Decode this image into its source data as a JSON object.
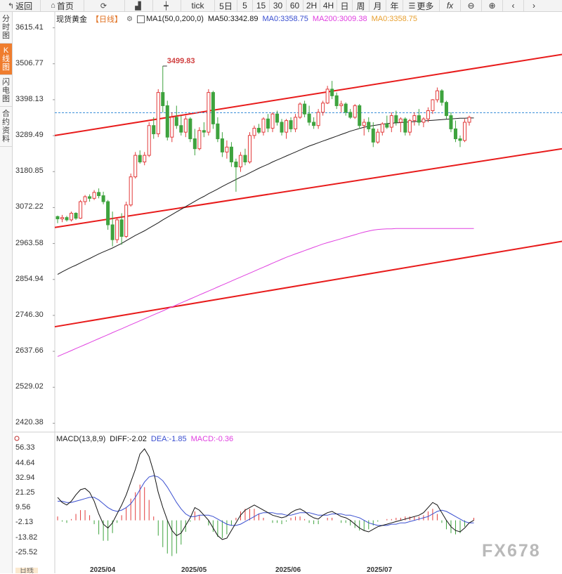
{
  "toolbar": {
    "back_label": "返回",
    "home_label": "首页",
    "tick_label": "tick",
    "periods": [
      "5日",
      "5",
      "15",
      "30",
      "60",
      "2H",
      "4H",
      "日",
      "周",
      "月",
      "年"
    ],
    "more_label": "更多",
    "fx_label": "fx"
  },
  "sidebar": {
    "tabs": [
      {
        "label": "分时图",
        "active": false
      },
      {
        "label": "K线图",
        "active": true
      },
      {
        "label": "闪电图",
        "active": false
      },
      {
        "label": "合约资料",
        "active": false
      }
    ]
  },
  "legend": {
    "symbol": "现货黄金",
    "period": "【日线】",
    "ma_setting": "MA1(50,0,200,0)",
    "ma50": "MA50:3342.89",
    "ma0a": "MA0:3358.75",
    "ma200": "MA200:3009.38",
    "ma0b": "MA0:3358.75"
  },
  "macd_legend": {
    "setting": "MACD(13,8,9)",
    "diff": "DIFF:-2.02",
    "dea": "DEA:-1.85",
    "macd": "MACD:-0.36"
  },
  "watermark": "FX678",
  "bottom_tab": "日线",
  "colors": {
    "up": "#e23b3b",
    "down": "#3ea33e",
    "ma50": "#1a1a1a",
    "ma200": "#e040e0",
    "channel": "#e81b1b",
    "last_price": "#3b8fd9",
    "dea": "#3a4fd0",
    "diff": "#111111"
  },
  "chart_data": {
    "type": "candlestick",
    "y_ticks": [
      "3615.41",
      "3506.77",
      "3398.13",
      "3289.49",
      "3180.85",
      "3072.22",
      "2963.58",
      "2854.94",
      "2746.30",
      "2637.66",
      "2529.02",
      "2420.38"
    ],
    "ylim": [
      2400,
      3640
    ],
    "x_labels": [
      "2025/04",
      "2025/05",
      "2025/06",
      "2025/07"
    ],
    "annotation": {
      "text": "3499.83",
      "value": 3499.83
    },
    "last_price": 3358.75,
    "candles": [
      [
        3045,
        3048,
        3025,
        3038
      ],
      [
        3038,
        3050,
        3028,
        3042
      ],
      [
        3042,
        3047,
        3030,
        3035
      ],
      [
        3035,
        3060,
        3030,
        3055
      ],
      [
        3055,
        3058,
        3035,
        3040
      ],
      [
        3040,
        3095,
        3038,
        3090
      ],
      [
        3090,
        3110,
        3080,
        3105
      ],
      [
        3105,
        3112,
        3090,
        3100
      ],
      [
        3100,
        3125,
        3095,
        3118
      ],
      [
        3118,
        3130,
        3100,
        3108
      ],
      [
        3108,
        3120,
        3082,
        3090
      ],
      [
        3090,
        3095,
        3005,
        3020
      ],
      [
        3020,
        3060,
        2955,
        2975
      ],
      [
        2975,
        3040,
        2965,
        3035
      ],
      [
        3035,
        3055,
        2960,
        2985
      ],
      [
        2985,
        3090,
        2980,
        3080
      ],
      [
        3080,
        3175,
        3075,
        3165
      ],
      [
        3165,
        3240,
        3160,
        3230
      ],
      [
        3230,
        3245,
        3205,
        3210
      ],
      [
        3210,
        3240,
        3200,
        3230
      ],
      [
        3230,
        3330,
        3225,
        3320
      ],
      [
        3320,
        3345,
        3280,
        3295
      ],
      [
        3295,
        3430,
        3285,
        3420
      ],
      [
        3420,
        3500,
        3360,
        3380
      ],
      [
        3380,
        3395,
        3275,
        3285
      ],
      [
        3285,
        3360,
        3270,
        3345
      ],
      [
        3345,
        3380,
        3310,
        3320
      ],
      [
        3320,
        3350,
        3290,
        3300
      ],
      [
        3300,
        3350,
        3285,
        3340
      ],
      [
        3340,
        3345,
        3270,
        3280
      ],
      [
        3280,
        3310,
        3230,
        3250
      ],
      [
        3250,
        3315,
        3245,
        3305
      ],
      [
        3305,
        3330,
        3285,
        3300
      ],
      [
        3300,
        3430,
        3290,
        3420
      ],
      [
        3420,
        3425,
        3310,
        3325
      ],
      [
        3325,
        3345,
        3270,
        3280
      ],
      [
        3280,
        3300,
        3225,
        3240
      ],
      [
        3240,
        3275,
        3220,
        3255
      ],
      [
        3255,
        3270,
        3195,
        3210
      ],
      [
        3210,
        3220,
        3120,
        3195
      ],
      [
        3195,
        3240,
        3180,
        3230
      ],
      [
        3230,
        3250,
        3200,
        3210
      ],
      [
        3210,
        3300,
        3205,
        3290
      ],
      [
        3290,
        3320,
        3280,
        3312
      ],
      [
        3312,
        3325,
        3295,
        3300
      ],
      [
        3300,
        3345,
        3290,
        3340
      ],
      [
        3340,
        3355,
        3300,
        3312
      ],
      [
        3312,
        3360,
        3300,
        3355
      ],
      [
        3355,
        3365,
        3320,
        3330
      ],
      [
        3330,
        3340,
        3290,
        3300
      ],
      [
        3300,
        3340,
        3280,
        3335
      ],
      [
        3335,
        3345,
        3300,
        3310
      ],
      [
        3310,
        3355,
        3300,
        3345
      ],
      [
        3345,
        3390,
        3340,
        3385
      ],
      [
        3385,
        3395,
        3345,
        3355
      ],
      [
        3355,
        3380,
        3320,
        3330
      ],
      [
        3330,
        3345,
        3310,
        3320
      ],
      [
        3320,
        3370,
        3310,
        3360
      ],
      [
        3360,
        3395,
        3350,
        3388
      ],
      [
        3388,
        3440,
        3385,
        3430
      ],
      [
        3430,
        3455,
        3400,
        3410
      ],
      [
        3410,
        3420,
        3370,
        3380
      ],
      [
        3380,
        3395,
        3360,
        3385
      ],
      [
        3385,
        3390,
        3350,
        3360
      ],
      [
        3360,
        3370,
        3340,
        3345
      ],
      [
        3345,
        3385,
        3340,
        3380
      ],
      [
        3380,
        3385,
        3310,
        3320
      ],
      [
        3320,
        3340,
        3290,
        3330
      ],
      [
        3330,
        3345,
        3300,
        3310
      ],
      [
        3310,
        3330,
        3255,
        3270
      ],
      [
        3270,
        3310,
        3265,
        3300
      ],
      [
        3300,
        3330,
        3290,
        3325
      ],
      [
        3325,
        3350,
        3310,
        3315
      ],
      [
        3315,
        3360,
        3300,
        3350
      ],
      [
        3350,
        3365,
        3320,
        3330
      ],
      [
        3330,
        3345,
        3300,
        3340
      ],
      [
        3340,
        3345,
        3290,
        3300
      ],
      [
        3300,
        3340,
        3290,
        3335
      ],
      [
        3335,
        3360,
        3320,
        3350
      ],
      [
        3350,
        3370,
        3320,
        3330
      ],
      [
        3330,
        3345,
        3315,
        3340
      ],
      [
        3340,
        3375,
        3330,
        3365
      ],
      [
        3365,
        3400,
        3355,
        3398
      ],
      [
        3398,
        3435,
        3390,
        3425
      ],
      [
        3425,
        3430,
        3380,
        3390
      ],
      [
        3390,
        3395,
        3340,
        3350
      ],
      [
        3350,
        3360,
        3300,
        3310
      ],
      [
        3310,
        3335,
        3270,
        3280
      ],
      [
        3280,
        3290,
        3255,
        3275
      ],
      [
        3275,
        3340,
        3270,
        3330
      ],
      [
        3330,
        3350,
        3320,
        3345
      ]
    ],
    "ma50": [
      2870,
      2878,
      2885,
      2892,
      2898,
      2905,
      2912,
      2918,
      2925,
      2932,
      2938,
      2944,
      2950,
      2957,
      2964,
      2972,
      2980,
      2988,
      2995,
      3002,
      3010,
      3018,
      3026,
      3035,
      3043,
      3051,
      3059,
      3067,
      3075,
      3083,
      3091,
      3099,
      3106,
      3114,
      3121,
      3128,
      3136,
      3143,
      3150,
      3157,
      3164,
      3170,
      3177,
      3184,
      3191,
      3197,
      3203,
      3210,
      3216,
      3222,
      3228,
      3234,
      3240,
      3246,
      3252,
      3258,
      3263,
      3268,
      3273,
      3278,
      3283,
      3288,
      3293,
      3298,
      3303,
      3307,
      3311,
      3315,
      3318,
      3320,
      3322,
      3324,
      3326,
      3327,
      3328,
      3329,
      3330,
      3331,
      3332,
      3333,
      3334,
      3335,
      3336,
      3337,
      3338,
      3339,
      3340,
      3341,
      3342,
      3342,
      3343,
      3343
    ],
    "ma200": [
      2622,
      2628,
      2634,
      2640,
      2646,
      2652,
      2658,
      2664,
      2670,
      2676,
      2682,
      2688,
      2694,
      2700,
      2706,
      2712,
      2718,
      2724,
      2730,
      2736,
      2742,
      2748,
      2754,
      2760,
      2766,
      2772,
      2778,
      2784,
      2790,
      2796,
      2802,
      2808,
      2814,
      2820,
      2826,
      2832,
      2838,
      2844,
      2850,
      2856,
      2862,
      2868,
      2874,
      2880,
      2886,
      2892,
      2898,
      2904,
      2910,
      2916,
      2922,
      2927,
      2932,
      2937,
      2942,
      2947,
      2952,
      2957,
      2962,
      2966,
      2970,
      2974,
      2978,
      2982,
      2986,
      2990,
      2994,
      2998,
      3001,
      3004,
      3006,
      3007,
      3008,
      3008,
      3009,
      3009,
      3009,
      3009,
      3009,
      3009,
      3009,
      3009,
      3009,
      3009,
      3009,
      3009,
      3009,
      3009,
      3009,
      3009,
      3009,
      3009
    ],
    "channel_lines": [
      {
        "from": 3290,
        "to": 3535
      },
      {
        "from": 3012,
        "to": 3250
      },
      {
        "from": 2712,
        "to": 2970
      }
    ],
    "macd": {
      "y_ticks": [
        "56.33",
        "44.64",
        "32.94",
        "21.25",
        "9.56",
        "-2.13",
        "-13.82",
        "-25.52"
      ],
      "ylim": [
        -36,
        62
      ],
      "diff": [
        18,
        14,
        12,
        15,
        20,
        24,
        25,
        22,
        15,
        5,
        -3,
        -6,
        -2,
        5,
        12,
        20,
        30,
        40,
        52,
        56,
        50,
        38,
        22,
        10,
        0,
        -8,
        -12,
        -10,
        -4,
        2,
        10,
        8,
        4,
        0,
        -6,
        -12,
        -15,
        -14,
        -8,
        -2,
        4,
        8,
        10,
        12,
        10,
        8,
        6,
        4,
        3,
        2,
        3,
        6,
        8,
        9,
        7,
        4,
        2,
        1,
        4,
        6,
        7,
        5,
        3,
        2,
        0,
        -3,
        -6,
        -8,
        -9,
        -7,
        -5,
        -4,
        -3,
        -2,
        -1,
        0,
        1,
        2,
        3,
        4,
        6,
        10,
        14,
        12,
        6,
        0,
        -5,
        -8,
        -9,
        -6,
        -2,
        0
      ],
      "dea": [
        15,
        15,
        14,
        14,
        15,
        16,
        17,
        18,
        18,
        16,
        13,
        10,
        8,
        7,
        8,
        10,
        13,
        18,
        24,
        30,
        34,
        35,
        34,
        31,
        26,
        20,
        14,
        9,
        5,
        3,
        3,
        4,
        4,
        4,
        3,
        1,
        -1,
        -3,
        -4,
        -4,
        -3,
        -1,
        1,
        3,
        5,
        6,
        6,
        6,
        5,
        5,
        4,
        4,
        5,
        6,
        6,
        6,
        5,
        4,
        4,
        4,
        5,
        5,
        5,
        4,
        4,
        3,
        2,
        0,
        -2,
        -3,
        -4,
        -4,
        -4,
        -3,
        -3,
        -2,
        -2,
        -1,
        0,
        1,
        2,
        3,
        5,
        7,
        8,
        7,
        5,
        3,
        1,
        -1,
        -2,
        -2
      ],
      "hist": [
        3,
        -1,
        -2,
        1,
        5,
        8,
        8,
        4,
        -3,
        -11,
        -16,
        -16,
        -10,
        -2,
        4,
        10,
        17,
        22,
        28,
        26,
        16,
        3,
        -12,
        -21,
        -26,
        -28,
        -26,
        -19,
        -9,
        -1,
        7,
        4,
        0,
        -4,
        -9,
        -13,
        -14,
        -11,
        -4,
        2,
        7,
        9,
        9,
        9,
        5,
        2,
        0,
        -2,
        -2,
        -3,
        -1,
        2,
        3,
        3,
        1,
        -2,
        -3,
        -3,
        0,
        2,
        2,
        0,
        -2,
        -2,
        -4,
        -6,
        -8,
        -8,
        -7,
        -4,
        -1,
        0,
        1,
        1,
        2,
        2,
        3,
        3,
        3,
        3,
        4,
        7,
        9,
        5,
        -2,
        -7,
        -10,
        -11,
        -10,
        -5,
        0,
        2
      ]
    }
  }
}
